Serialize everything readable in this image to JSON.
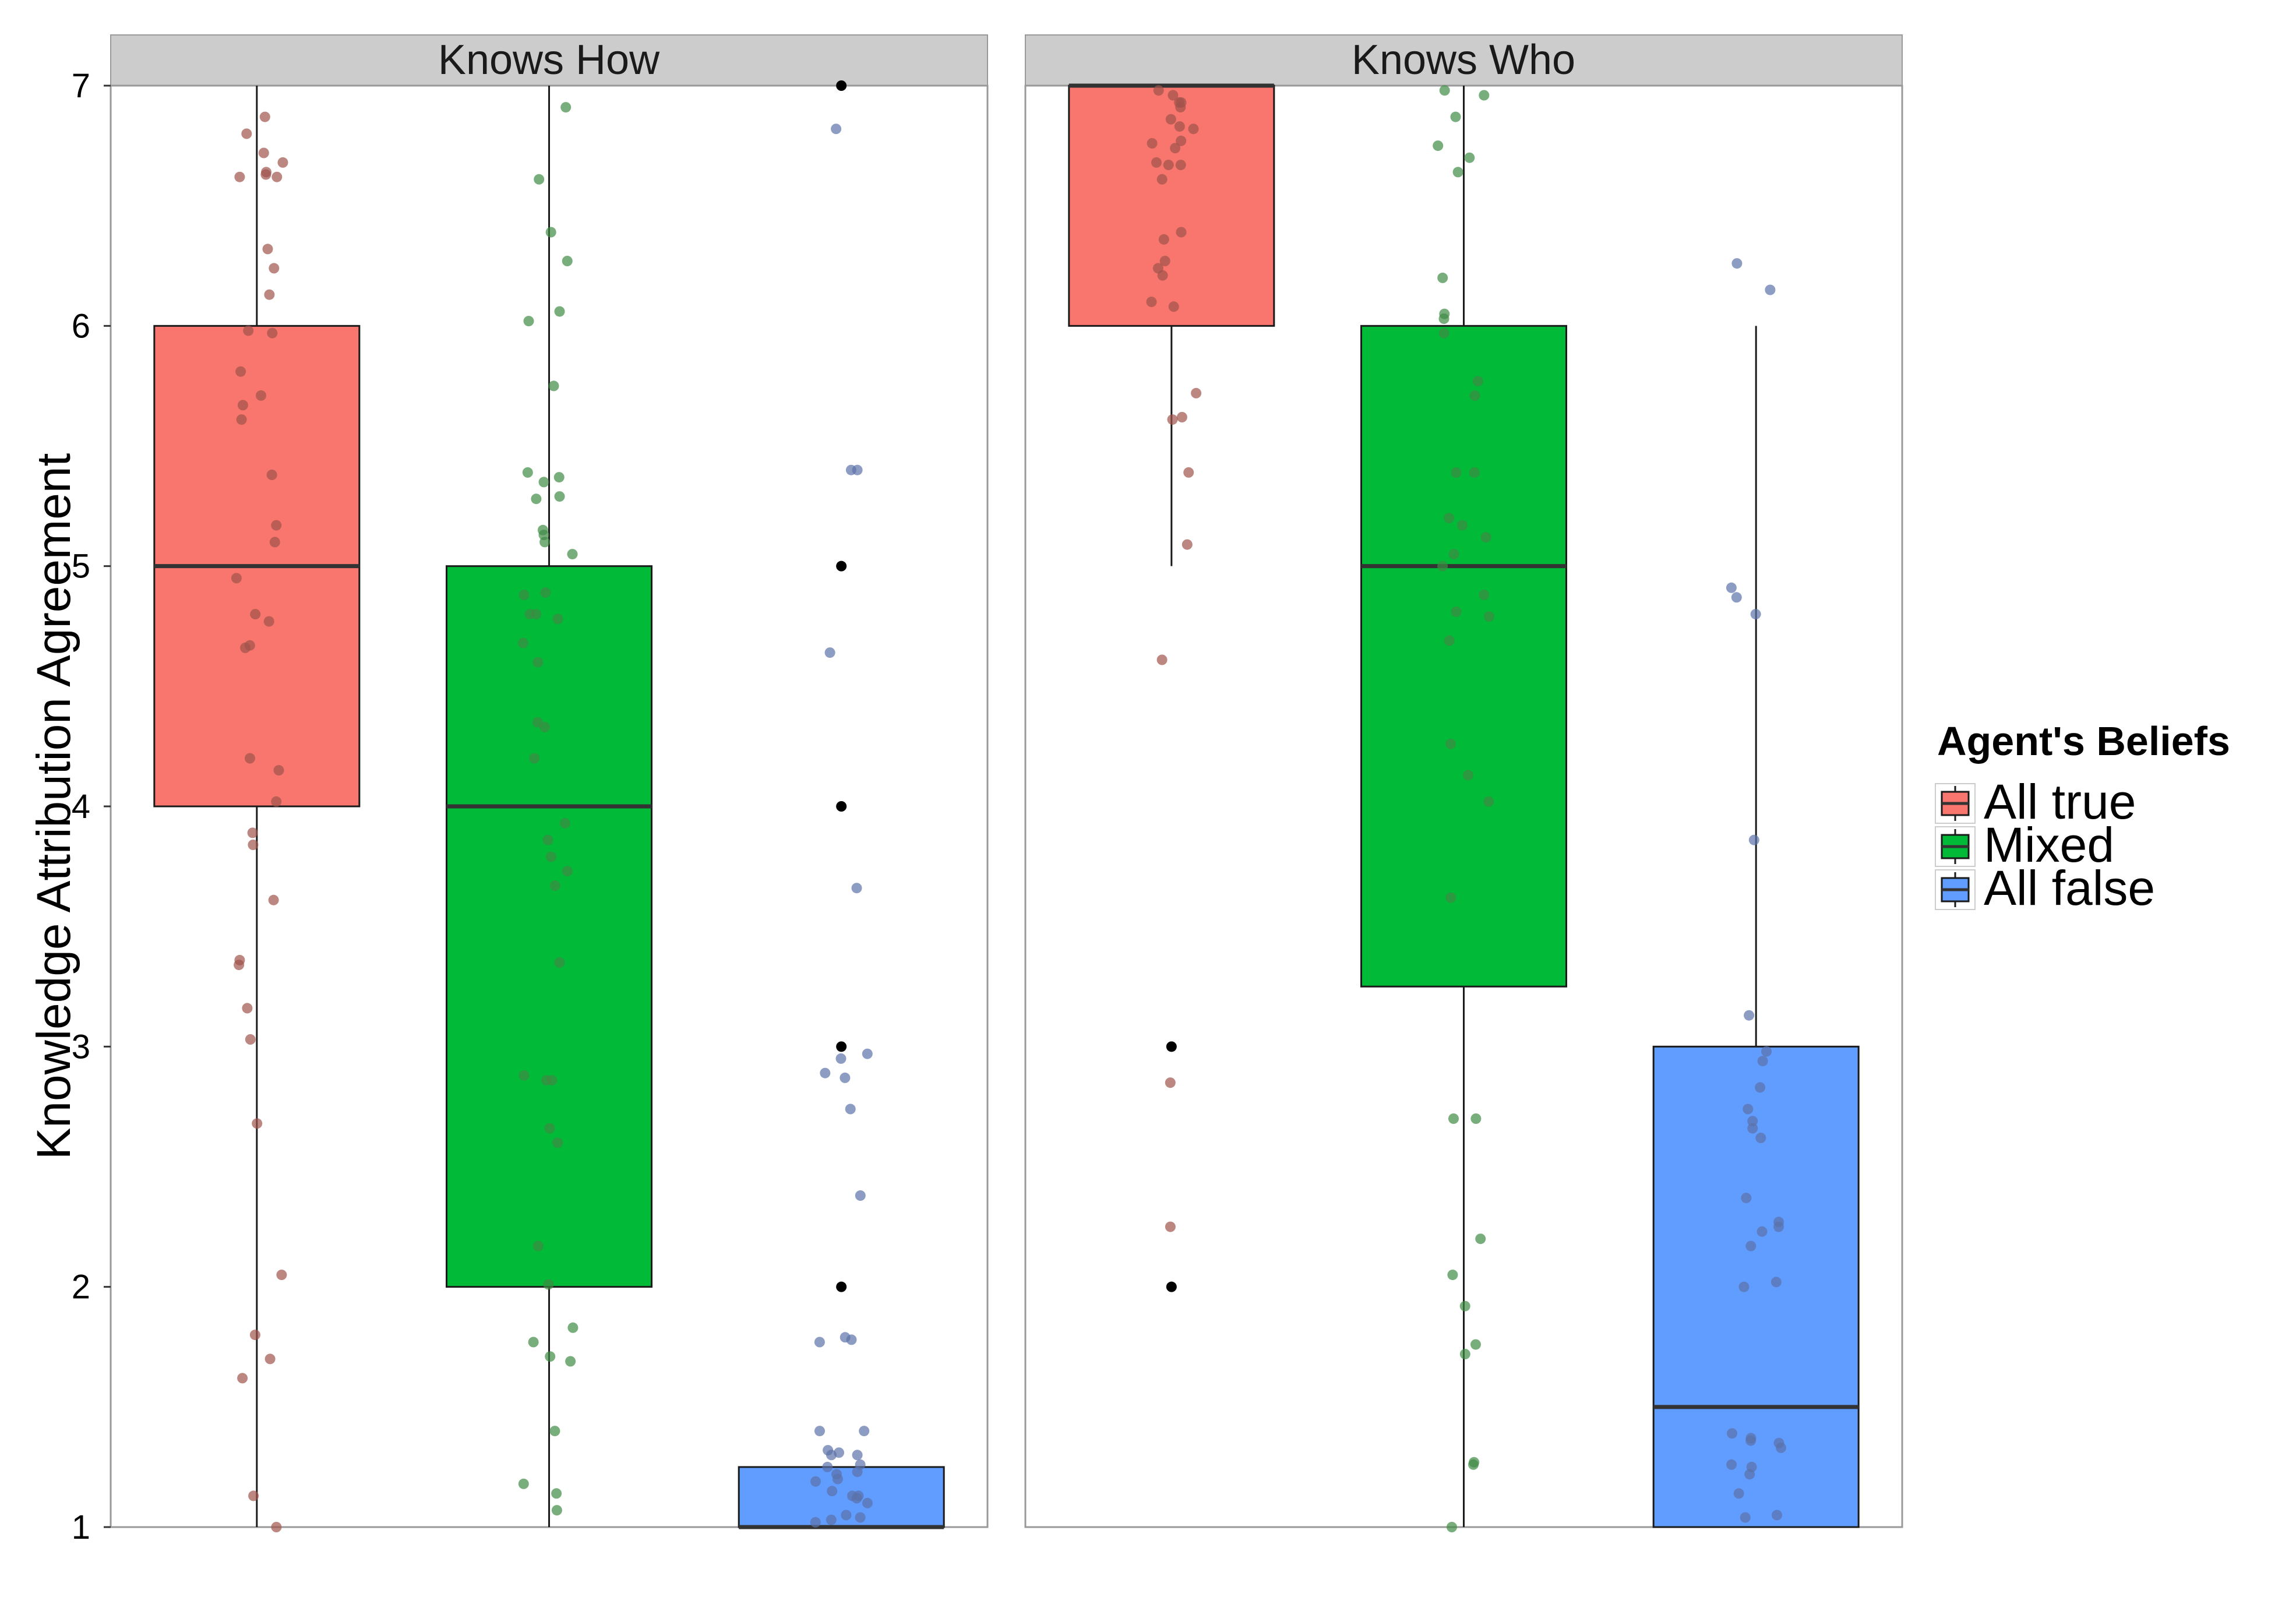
{
  "chart_data": {
    "type": "box",
    "ylabel": "Knowledge Attribution Agreement",
    "xlabel": "",
    "ylim": [
      1,
      7
    ],
    "yticks": [
      1,
      2,
      3,
      4,
      5,
      6,
      7
    ],
    "grid": false,
    "legend": {
      "title": "Agent's Beliefs",
      "position": "right",
      "entries": [
        "All true",
        "Mixed",
        "All false"
      ]
    },
    "colors": {
      "All true": "#F8766D",
      "Mixed": "#00BA38",
      "All false": "#619CFF",
      "All true points": "#A0524B",
      "Mixed points": "#3E8A45",
      "All false points": "#5B72A8"
    },
    "panels": [
      {
        "title": "Knows How",
        "boxes": [
          {
            "group": "All true",
            "whisker_low": 1,
            "q1": 4,
            "median": 5,
            "q3": 6,
            "whisker_high": 7,
            "outliers": [],
            "points": [
              6.87,
              6.8,
              6.72,
              6.68,
              6.64,
              6.63,
              6.62,
              6.62,
              6.32,
              6.24,
              6.13,
              5.98,
              5.97,
              5.81,
              5.71,
              5.67,
              5.61,
              5.38,
              5.17,
              5.1,
              4.95,
              4.8,
              4.77,
              4.67,
              4.66,
              4.2,
              4.15,
              4.02,
              3.89,
              3.84,
              3.61,
              3.36,
              3.34,
              3.16,
              3.03,
              2.68,
              2.05,
              1.8,
              1.7,
              1.62,
              1.13,
              1.0
            ]
          },
          {
            "group": "Mixed",
            "whisker_low": 1,
            "q1": 2,
            "median": 4,
            "q3": 5,
            "whisker_high": 7,
            "outliers": [],
            "points": [
              6.91,
              6.61,
              6.39,
              6.27,
              6.06,
              6.02,
              5.75,
              5.39,
              5.37,
              5.35,
              5.29,
              5.28,
              5.15,
              5.13,
              5.1,
              5.05,
              4.89,
              4.88,
              4.8,
              4.8,
              4.78,
              4.68,
              4.6,
              4.35,
              4.33,
              4.2,
              3.93,
              3.86,
              3.79,
              3.73,
              3.67,
              3.35,
              2.88,
              2.86,
              2.86,
              2.66,
              2.6,
              2.17,
              2.01,
              1.83,
              1.77,
              1.71,
              1.69,
              1.4,
              1.18,
              1.14,
              1.07
            ]
          },
          {
            "group": "All false",
            "whisker_low": 1,
            "q1": 1,
            "median": 1,
            "q3": 1.25,
            "whisker_high": 1.25,
            "outliers": [
              2,
              3,
              4,
              5,
              7
            ],
            "points": [
              6.82,
              5.4,
              5.4,
              4.64,
              3.66,
              2.97,
              2.95,
              2.89,
              2.87,
              2.74,
              2.38,
              1.79,
              1.78,
              1.77,
              1.4,
              1.4,
              1.32,
              1.31,
              1.3,
              1.3,
              1.26,
              1.25,
              1.23,
              1.22,
              1.2,
              1.19,
              1.15,
              1.13,
              1.13,
              1.12,
              1.1,
              1.05,
              1.04,
              1.03,
              1.02
            ]
          }
        ]
      },
      {
        "title": "Knows Who",
        "boxes": [
          {
            "group": "All true",
            "whisker_low": 5,
            "q1": 6,
            "median": 7,
            "q3": 7,
            "whisker_high": 7,
            "outliers": [
              2,
              3
            ],
            "points": [
              6.98,
              6.96,
              6.93,
              6.93,
              6.91,
              6.86,
              6.83,
              6.82,
              6.77,
              6.76,
              6.74,
              6.68,
              6.67,
              6.67,
              6.61,
              6.39,
              6.36,
              6.27,
              6.24,
              6.21,
              6.1,
              6.08,
              5.72,
              5.62,
              5.61,
              5.39,
              5.09,
              4.61,
              2.85,
              2.25
            ]
          },
          {
            "group": "Mixed",
            "whisker_low": 1,
            "q1": 3.25,
            "median": 5,
            "q3": 6,
            "whisker_high": 7,
            "outliers": [],
            "points": [
              6.98,
              6.96,
              6.87,
              6.75,
              6.7,
              6.64,
              6.2,
              6.05,
              6.03,
              5.97,
              5.77,
              5.71,
              5.39,
              5.39,
              5.2,
              5.17,
              5.12,
              5.05,
              5.0,
              4.88,
              4.81,
              4.79,
              4.69,
              4.26,
              4.13,
              4.02,
              3.62,
              2.7,
              2.7,
              2.2,
              2.05,
              1.92,
              1.76,
              1.72,
              1.27,
              1.26,
              1.0
            ]
          },
          {
            "group": "All false",
            "whisker_low": 1,
            "q1": 1,
            "median": 1.5,
            "q3": 3,
            "whisker_high": 6,
            "outliers": [],
            "points": [
              6.26,
              6.15,
              4.91,
              4.87,
              4.8,
              3.86,
              3.13,
              2.98,
              2.94,
              2.83,
              2.74,
              2.69,
              2.66,
              2.62,
              2.37,
              2.27,
              2.25,
              2.23,
              2.17,
              2.02,
              2.0,
              1.39,
              1.37,
              1.36,
              1.35,
              1.33,
              1.26,
              1.25,
              1.22,
              1.14,
              1.05,
              1.04
            ]
          }
        ]
      }
    ]
  }
}
